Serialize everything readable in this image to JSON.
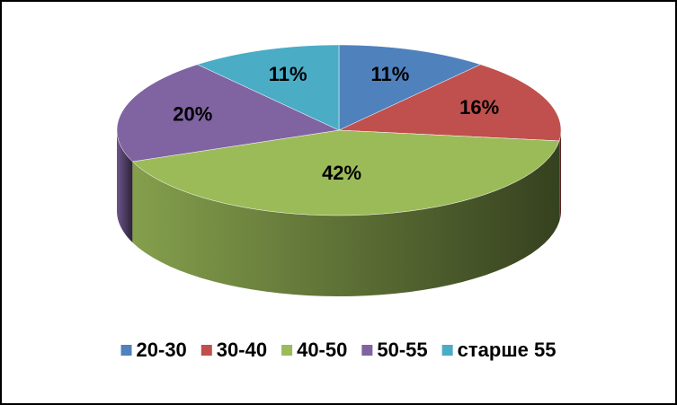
{
  "chart_data": {
    "type": "pie3d",
    "categories": [
      "20-30",
      "30-40",
      "40-50",
      "50-55",
      "старше 55"
    ],
    "values": [
      11,
      16,
      42,
      20,
      11
    ],
    "value_labels": [
      "11%",
      "16%",
      "42%",
      "20%",
      "11%"
    ],
    "colors": [
      "#4F81BD",
      "#C0504D",
      "#9BBB59",
      "#8064A2",
      "#4BACC6"
    ],
    "legend": "bottom"
  }
}
